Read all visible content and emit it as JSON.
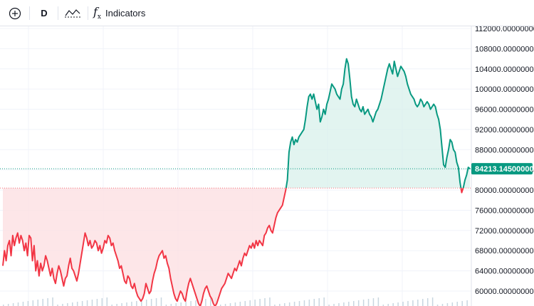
{
  "toolbar": {
    "add_icon": "plus-circle-icon",
    "interval_label": "D",
    "chart_style_icon": "baseline-style-icon",
    "indicators_icon": "fx-icon",
    "indicators_label": "Indicators"
  },
  "colors": {
    "up_line": "#089981",
    "down_line": "#f23645",
    "up_fill": "#d6f0ea",
    "down_fill": "#fde0e2",
    "grid": "#f0f3fa",
    "baseline_dots": "#9598a1",
    "last_price_line": "#089981",
    "volume": "#c8d6e0"
  },
  "chart_data": {
    "type": "line",
    "style": "baseline",
    "ylim": [
      58000,
      113000
    ],
    "yticks": [
      "112000.00000000",
      "108000.00000000",
      "104000.00000000",
      "100000.00000000",
      "96000.00000000",
      "92000.00000000",
      "88000.00000000",
      "84000.00000000",
      "80000.00000000",
      "76000.00000000",
      "72000.00000000",
      "68000.00000000",
      "64000.00000000",
      "60000.00000000"
    ],
    "ytick_values": [
      112000,
      108000,
      104000,
      100000,
      96000,
      92000,
      88000,
      84000,
      80000,
      76000,
      72000,
      68000,
      64000,
      60000
    ],
    "baseline_value": 80400,
    "last_price": 84213.145,
    "last_price_label": "84213.14500000",
    "grid": true,
    "series": [
      {
        "values": [
          65000,
          68000,
          66000,
          69000,
          70000,
          67000,
          71000,
          69000,
          70500,
          71500,
          69500,
          71000,
          70000,
          68000,
          69500,
          67000,
          71000,
          70500,
          66000,
          69000,
          64000,
          66000,
          63000,
          65500,
          64000,
          65000,
          67000,
          66000,
          64500,
          63000,
          64500,
          62500,
          61500,
          63500,
          65000,
          64000,
          62500,
          61000,
          62500,
          63000,
          65000,
          66500,
          64500,
          64000,
          63000,
          62000,
          63500,
          65500,
          67500,
          69500,
          71500,
          70500,
          69000,
          70000,
          68500,
          69000,
          70000,
          69500,
          68000,
          69000,
          67500,
          68500,
          70000,
          69500,
          71000,
          70500,
          69000,
          69500,
          68000,
          67000,
          66000,
          64500,
          65000,
          63500,
          62000,
          61500,
          63000,
          62500,
          61000,
          60500,
          61500,
          60000,
          59000,
          58500,
          58000,
          58500,
          59500,
          61500,
          60500,
          59500,
          60000,
          62000,
          63500,
          64500,
          66000,
          67000,
          67500,
          68000,
          66500,
          67000,
          65500,
          64500,
          62500,
          61000,
          59500,
          58500,
          58000,
          59000,
          60000,
          59500,
          58500,
          58000,
          60000,
          61500,
          62500,
          61500,
          60500,
          59500,
          58500,
          57500,
          57000,
          58000,
          59500,
          60500,
          61000,
          60000,
          59000,
          58500,
          57500,
          57000,
          57500,
          58500,
          59500,
          60500,
          61000,
          61500,
          62500,
          63500,
          63000,
          62500,
          63500,
          64500,
          64000,
          65000,
          66000,
          65000,
          66500,
          67500,
          67000,
          68000,
          69000,
          68500,
          69500,
          68500,
          70000,
          69000,
          70000,
          69500,
          69000,
          71000,
          71500,
          72500,
          73000,
          72000,
          71500,
          73000,
          74500,
          75500,
          76000,
          76500,
          77000,
          78500,
          80000,
          82000,
          87500,
          89500,
          90500,
          89000,
          90000,
          89500,
          90500,
          91000,
          91500,
          92000,
          94000,
          96500,
          98500,
          99000,
          98000,
          99000,
          97500,
          96000,
          97000,
          93500,
          94500,
          96000,
          95000,
          97000,
          98000,
          99500,
          101000,
          100500,
          100000,
          99000,
          98500,
          98000,
          100000,
          101000,
          104000,
          106000,
          105000,
          102000,
          98500,
          97000,
          96500,
          98000,
          97000,
          96000,
          95500,
          96500,
          95000,
          95500,
          96000,
          95000,
          94500,
          93500,
          94500,
          95500,
          96000,
          97000,
          98000,
          99500,
          101000,
          102500,
          104000,
          105000,
          104000,
          103000,
          105500,
          104000,
          102500,
          103500,
          104500,
          104000,
          103500,
          102500,
          101000,
          100000,
          99000,
          98500,
          98000,
          97000,
          96500,
          97000,
          98000,
          97500,
          96500,
          97000,
          97500,
          97000,
          96000,
          96500,
          97000,
          96500,
          95000,
          94000,
          92000,
          88500,
          85000,
          84500,
          86500,
          88000,
          90000,
          89500,
          88000,
          87500,
          85500,
          84500,
          81500,
          79500,
          80500,
          82000,
          83000,
          84500,
          84200
        ]
      }
    ]
  }
}
